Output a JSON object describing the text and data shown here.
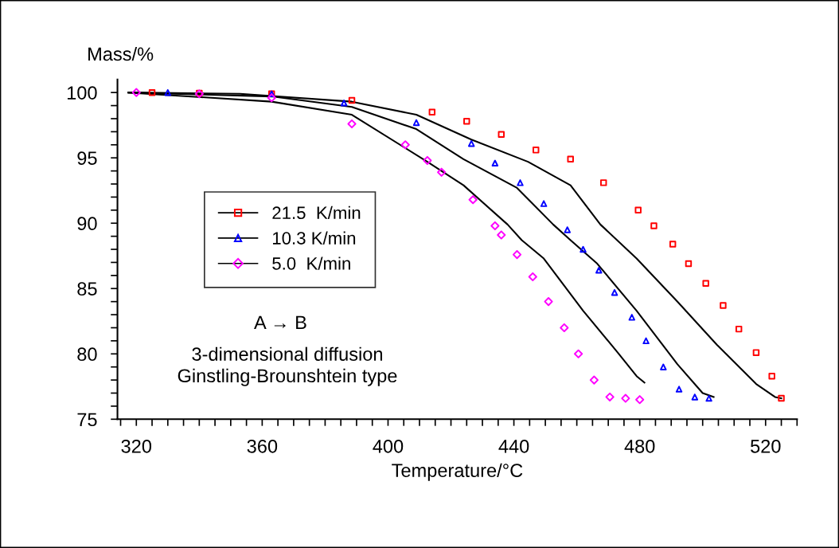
{
  "chart_data": {
    "type": "scatter",
    "xlabel": "Temperature/°C",
    "ylabel": "Mass/%",
    "xlim": [
      314,
      530
    ],
    "ylim": [
      75,
      101
    ],
    "xticks": [
      {
        "value": 315,
        "label": null
      },
      320,
      {
        "value": 325,
        "label": null
      },
      {
        "value": 330,
        "label": null
      },
      {
        "value": 335,
        "label": null
      },
      {
        "value": 340,
        "label": null
      },
      {
        "value": 345,
        "label": null
      },
      {
        "value": 350,
        "label": null
      },
      {
        "value": 355,
        "label": null
      },
      360,
      {
        "value": 365,
        "label": null
      },
      {
        "value": 370,
        "label": null
      },
      {
        "value": 375,
        "label": null
      },
      {
        "value": 380,
        "label": null
      },
      {
        "value": 385,
        "label": null
      },
      {
        "value": 390,
        "label": null
      },
      {
        "value": 395,
        "label": null
      },
      400,
      {
        "value": 405,
        "label": null
      },
      {
        "value": 410,
        "label": null
      },
      {
        "value": 415,
        "label": null
      },
      {
        "value": 420,
        "label": null
      },
      {
        "value": 425,
        "label": null
      },
      {
        "value": 430,
        "label": null
      },
      {
        "value": 435,
        "label": null
      },
      440,
      {
        "value": 445,
        "label": null
      },
      {
        "value": 450,
        "label": null
      },
      {
        "value": 455,
        "label": null
      },
      {
        "value": 460,
        "label": null
      },
      {
        "value": 465,
        "label": null
      },
      {
        "value": 470,
        "label": null
      },
      {
        "value": 475,
        "label": null
      },
      480,
      {
        "value": 485,
        "label": null
      },
      {
        "value": 490,
        "label": null
      },
      {
        "value": 495,
        "label": null
      },
      {
        "value": 500,
        "label": null
      },
      {
        "value": 505,
        "label": null
      },
      {
        "value": 510,
        "label": null
      },
      {
        "value": 515,
        "label": null
      },
      520,
      {
        "value": 525,
        "label": null
      },
      {
        "value": 530,
        "label": null
      }
    ],
    "yticks": [
      75,
      {
        "value": 76,
        "label": null
      },
      {
        "value": 77,
        "label": null
      },
      {
        "value": 78,
        "label": null
      },
      {
        "value": 79,
        "label": null
      },
      80,
      {
        "value": 81,
        "label": null
      },
      {
        "value": 82,
        "label": null
      },
      {
        "value": 83,
        "label": null
      },
      {
        "value": 84,
        "label": null
      },
      85,
      {
        "value": 86,
        "label": null
      },
      {
        "value": 87,
        "label": null
      },
      {
        "value": 88,
        "label": null
      },
      {
        "value": 89,
        "label": null
      },
      90,
      {
        "value": 91,
        "label": null
      },
      {
        "value": 92,
        "label": null
      },
      {
        "value": 93,
        "label": null
      },
      {
        "value": 94,
        "label": null
      },
      95,
      {
        "value": 96,
        "label": null
      },
      {
        "value": 97,
        "label": null
      },
      {
        "value": 98,
        "label": null
      },
      {
        "value": 99,
        "label": null
      },
      100
    ],
    "grid": false,
    "legend": "top left",
    "annotations": [
      "A → B",
      "3-dimensional diffusion\nGinstling-Brounshtein type"
    ],
    "series": [
      {
        "name": "21.5  K/min",
        "marker": "square",
        "color": "#ff0000",
        "x": [
          325,
          340,
          363,
          388.5,
          414,
          425,
          436,
          447,
          458,
          468.5,
          479.5,
          484.5,
          490.5,
          495.5,
          501,
          506.5,
          511.5,
          517,
          522,
          525
        ],
        "values": [
          100,
          99.95,
          99.9,
          99.4,
          98.5,
          97.8,
          96.8,
          95.6,
          94.9,
          93.1,
          91.0,
          89.8,
          88.4,
          86.9,
          85.4,
          83.7,
          81.9,
          80.1,
          78.3,
          76.6
        ]
      },
      {
        "name": "10.3 K/min",
        "marker": "triangle",
        "color": "#0000ff",
        "x": [
          330,
          363,
          386,
          409,
          426.5,
          434,
          442,
          449.5,
          457,
          462,
          467,
          472,
          477.5,
          482,
          487.5,
          492.5,
          497.5,
          502
        ],
        "values": [
          100,
          99.9,
          99.2,
          97.7,
          96.1,
          94.6,
          93.1,
          91.5,
          89.5,
          88.0,
          86.4,
          84.7,
          82.8,
          81.0,
          79.0,
          77.3,
          76.7,
          76.6
        ]
      },
      {
        "name": "5.0  K/min",
        "marker": "diamond",
        "color": "#ff00ff",
        "x": [
          320,
          340,
          363,
          388.5,
          405.5,
          412.5,
          417,
          427,
          434,
          436,
          441,
          446,
          451,
          456,
          460.5,
          465.5,
          470.5,
          475.5,
          480
        ],
        "values": [
          100,
          99.9,
          99.6,
          97.6,
          96.0,
          94.8,
          93.9,
          91.8,
          89.8,
          89.1,
          87.6,
          85.9,
          84.0,
          82.0,
          80.0,
          78.0,
          76.7,
          76.6,
          76.5
        ]
      },
      {
        "type": "line",
        "color": "#000000",
        "x": [
          317.5,
          353,
          388.5,
          409,
          426.5,
          444.5,
          458,
          467.5,
          479,
          492,
          504.5,
          517,
          523,
          525
        ],
        "values": [
          100,
          99.9,
          99.3,
          98.3,
          96.4,
          94.7,
          92.9,
          89.9,
          87.3,
          84.0,
          80.7,
          77.7,
          76.7,
          76.6
        ]
      },
      {
        "type": "line",
        "color": "#000000",
        "x": [
          317.5,
          363,
          388.5,
          409,
          424,
          441,
          452.5,
          458,
          466.5,
          479,
          492,
          500,
          503.5
        ],
        "values": [
          100,
          99.7,
          98.9,
          97.2,
          94.9,
          92.7,
          89.9,
          88.7,
          86.9,
          83.3,
          79.2,
          77.0,
          76.7
        ]
      },
      {
        "type": "line",
        "color": "#000000",
        "x": [
          317.5,
          363,
          388.5,
          412.5,
          424,
          438,
          442.5,
          449.5,
          462,
          473,
          479,
          481.5
        ],
        "values": [
          100,
          99.3,
          98.3,
          94.7,
          92.9,
          89.9,
          88.7,
          87.3,
          83.3,
          80.1,
          78.3,
          77.8
        ]
      }
    ]
  }
}
